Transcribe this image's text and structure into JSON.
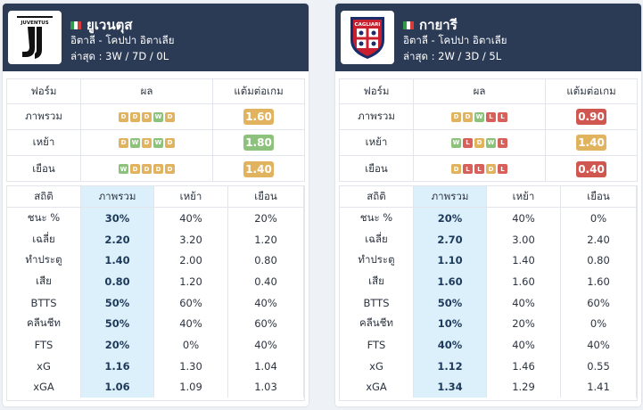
{
  "teams": [
    {
      "name": "ยูเวนตุส",
      "league": "อิตาลี - โคปปา อิตาเลีย",
      "recent": "ล่าสุด : 3W / 7D / 0L",
      "logo_text": "JUVENTUS",
      "form_headers": [
        "ฟอร์ม",
        "ผล",
        "แต้มต่อเกม"
      ],
      "form_rows": [
        {
          "label": "ภาพรวม",
          "results": [
            "D",
            "D",
            "D",
            "W",
            "D"
          ],
          "ppg": "1.60",
          "ppg_color": "#e2b35f"
        },
        {
          "label": "เหย้า",
          "results": [
            "D",
            "W",
            "D",
            "W",
            "D"
          ],
          "ppg": "1.80",
          "ppg_color": "#8cc27c"
        },
        {
          "label": "เยือน",
          "results": [
            "W",
            "D",
            "D",
            "D",
            "D"
          ],
          "ppg": "1.40",
          "ppg_color": "#e2b35f"
        }
      ],
      "stats_headers": [
        "สถิติ",
        "ภาพรวม",
        "เหย้า",
        "เยือน"
      ],
      "stats_rows": [
        {
          "label": "ชนะ %",
          "overall": "30%",
          "home": "40%",
          "away": "20%"
        },
        {
          "label": "เฉลี่ย",
          "overall": "2.20",
          "home": "3.20",
          "away": "1.20"
        },
        {
          "label": "ทำประตู",
          "overall": "1.40",
          "home": "2.00",
          "away": "0.80"
        },
        {
          "label": "เสีย",
          "overall": "0.80",
          "home": "1.20",
          "away": "0.40"
        },
        {
          "label": "BTTS",
          "overall": "50%",
          "home": "60%",
          "away": "40%"
        },
        {
          "label": "คลีนชีท",
          "overall": "50%",
          "home": "40%",
          "away": "60%"
        },
        {
          "label": "FTS",
          "overall": "20%",
          "home": "0%",
          "away": "40%"
        },
        {
          "label": "xG",
          "overall": "1.16",
          "home": "1.30",
          "away": "1.04"
        },
        {
          "label": "xGA",
          "overall": "1.06",
          "home": "1.09",
          "away": "1.03"
        }
      ]
    },
    {
      "name": "กายารี",
      "league": "อิตาลี - โคปปา อิตาเลีย",
      "recent": "ล่าสุด : 2W / 3D / 5L",
      "logo_text": "CAGLIARI",
      "form_headers": [
        "ฟอร์ม",
        "ผล",
        "แต้มต่อเกม"
      ],
      "form_rows": [
        {
          "label": "ภาพรวม",
          "results": [
            "D",
            "D",
            "W",
            "L",
            "L"
          ],
          "ppg": "0.90",
          "ppg_color": "#d0574f"
        },
        {
          "label": "เหย้า",
          "results": [
            "W",
            "L",
            "D",
            "W",
            "L"
          ],
          "ppg": "1.40",
          "ppg_color": "#e2b35f"
        },
        {
          "label": "เยือน",
          "results": [
            "D",
            "L",
            "L",
            "D",
            "L"
          ],
          "ppg": "0.40",
          "ppg_color": "#d0574f"
        }
      ],
      "stats_headers": [
        "สถิติ",
        "ภาพรวม",
        "เหย้า",
        "เยือน"
      ],
      "stats_rows": [
        {
          "label": "ชนะ %",
          "overall": "20%",
          "home": "40%",
          "away": "0%"
        },
        {
          "label": "เฉลี่ย",
          "overall": "2.70",
          "home": "3.00",
          "away": "2.40"
        },
        {
          "label": "ทำประตู",
          "overall": "1.10",
          "home": "1.40",
          "away": "0.80"
        },
        {
          "label": "เสีย",
          "overall": "1.60",
          "home": "1.60",
          "away": "1.60"
        },
        {
          "label": "BTTS",
          "overall": "50%",
          "home": "40%",
          "away": "60%"
        },
        {
          "label": "คลีนชีท",
          "overall": "10%",
          "home": "20%",
          "away": "0%"
        },
        {
          "label": "FTS",
          "overall": "40%",
          "home": "40%",
          "away": "40%"
        },
        {
          "label": "xG",
          "overall": "1.12",
          "home": "1.46",
          "away": "0.55"
        },
        {
          "label": "xGA",
          "overall": "1.34",
          "home": "1.29",
          "away": "1.41"
        }
      ]
    }
  ],
  "colors": {
    "header_bg": "#2b3a55",
    "win": "#8cc27c",
    "draw": "#e2b35f",
    "loss": "#d8605a",
    "overall_col": "#dcf0fb"
  }
}
